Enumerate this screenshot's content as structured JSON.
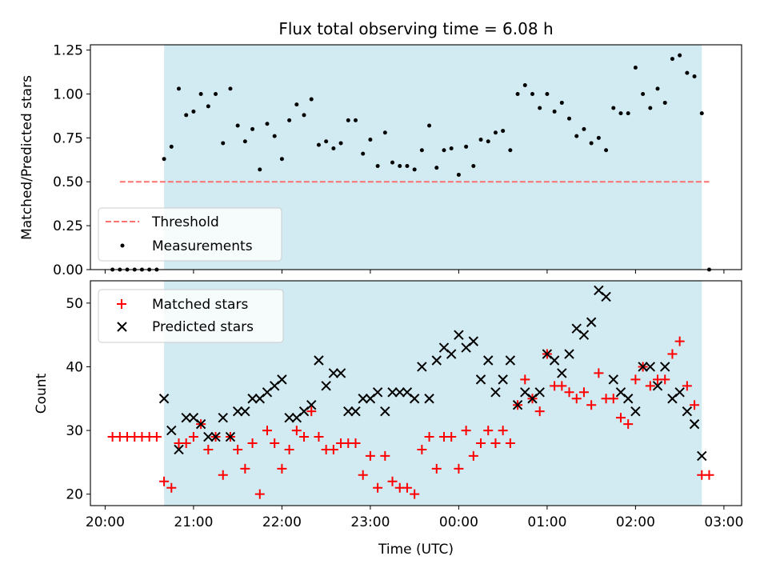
{
  "title": "Flux total observing time = 6.08 h",
  "colors": {
    "shade": "#add8e6",
    "threshold": "#ff7070",
    "matched": "#ff0000",
    "predicted": "#000000",
    "measurement": "#000000"
  },
  "x_ticks": [
    {
      "t": 20.0,
      "label": "20:00"
    },
    {
      "t": 21.0,
      "label": "21:00"
    },
    {
      "t": 22.0,
      "label": "22:00"
    },
    {
      "t": 23.0,
      "label": "23:00"
    },
    {
      "t": 24.0,
      "label": "00:00"
    },
    {
      "t": 25.0,
      "label": "01:00"
    },
    {
      "t": 26.0,
      "label": "02:00"
    },
    {
      "t": 27.0,
      "label": "03:00"
    }
  ],
  "chart_data": [
    {
      "type": "scatter",
      "title": "Flux total observing time = 6.08 h",
      "ylabel": "Matched/Predicted stars",
      "xlim": [
        "19:50",
        "03:12"
      ],
      "ylim": [
        0,
        1.28
      ],
      "y_ticks": [
        "0.00",
        "0.25",
        "0.50",
        "0.75",
        "1.00",
        "1.25"
      ],
      "shaded_range": [
        "20:40",
        "02:45"
      ],
      "legend": {
        "position": "lower-left",
        "threshold_label": "Threshold",
        "measurements_label": "Measurements"
      },
      "threshold": 0.5,
      "threshold_span": [
        "20:10",
        "02:50"
      ],
      "measurements": {
        "x": [
          "20:05",
          "20:10",
          "20:15",
          "20:20",
          "20:25",
          "20:30",
          "20:35",
          "20:40",
          "20:45",
          "20:50",
          "20:55",
          "21:00",
          "21:05",
          "21:10",
          "21:15",
          "21:20",
          "21:25",
          "21:30",
          "21:35",
          "21:40",
          "21:45",
          "21:50",
          "21:55",
          "22:00",
          "22:05",
          "22:10",
          "22:15",
          "22:20",
          "22:25",
          "22:30",
          "22:35",
          "22:40",
          "22:45",
          "22:50",
          "22:55",
          "23:00",
          "23:05",
          "23:10",
          "23:15",
          "23:20",
          "23:25",
          "23:30",
          "23:35",
          "23:40",
          "23:45",
          "23:50",
          "23:55",
          "00:00",
          "00:05",
          "00:10",
          "00:15",
          "00:20",
          "00:25",
          "00:30",
          "00:35",
          "00:40",
          "00:45",
          "00:50",
          "00:55",
          "01:00",
          "01:05",
          "01:10",
          "01:15",
          "01:20",
          "01:25",
          "01:30",
          "01:35",
          "01:40",
          "01:45",
          "01:50",
          "01:55",
          "02:00",
          "02:05",
          "02:10",
          "02:15",
          "02:20",
          "02:25",
          "02:30",
          "02:35",
          "02:40",
          "02:45",
          "02:50"
        ],
        "y": [
          0,
          0,
          0,
          0,
          0,
          0,
          0,
          0.63,
          0.7,
          1.03,
          0.88,
          0.9,
          1.0,
          0.93,
          1.0,
          0.72,
          1.03,
          0.82,
          0.73,
          0.8,
          0.57,
          0.83,
          0.76,
          0.63,
          0.85,
          0.94,
          0.88,
          0.97,
          0.71,
          0.73,
          0.69,
          0.72,
          0.85,
          0.85,
          0.66,
          0.74,
          0.59,
          0.78,
          0.61,
          0.59,
          0.59,
          0.57,
          0.68,
          0.82,
          0.58,
          0.68,
          0.69,
          0.54,
          0.7,
          0.59,
          0.74,
          0.73,
          0.78,
          0.79,
          0.68,
          1.0,
          1.05,
          1.0,
          0.92,
          1.0,
          0.9,
          0.95,
          0.86,
          0.76,
          0.8,
          0.72,
          0.75,
          0.68,
          0.92,
          0.89,
          0.89,
          1.15,
          1.0,
          0.92,
          1.03,
          0.95,
          1.2,
          1.22,
          1.12,
          1.1,
          0.89,
          0
        ]
      }
    },
    {
      "type": "scatter",
      "xlabel": "Time (UTC)",
      "ylabel": "Count",
      "xlim": [
        "19:50",
        "03:12"
      ],
      "ylim": [
        18.2,
        53.5
      ],
      "y_ticks": [
        "20",
        "30",
        "40",
        "50"
      ],
      "shaded_range": [
        "20:40",
        "02:45"
      ],
      "legend": {
        "position": "upper-left",
        "matched_label": "Matched stars",
        "predicted_label": "Predicted stars"
      },
      "matched": {
        "x": [
          "20:05",
          "20:10",
          "20:15",
          "20:20",
          "20:25",
          "20:30",
          "20:35",
          "20:40",
          "20:45",
          "20:50",
          "20:55",
          "21:00",
          "21:05",
          "21:10",
          "21:15",
          "21:20",
          "21:25",
          "21:30",
          "21:35",
          "21:40",
          "21:45",
          "21:50",
          "21:55",
          "22:00",
          "22:05",
          "22:10",
          "22:15",
          "22:20",
          "22:25",
          "22:30",
          "22:35",
          "22:40",
          "22:45",
          "22:50",
          "22:55",
          "23:00",
          "23:05",
          "23:10",
          "23:15",
          "23:20",
          "23:25",
          "23:30",
          "23:35",
          "23:40",
          "23:45",
          "23:50",
          "23:55",
          "00:00",
          "00:05",
          "00:10",
          "00:15",
          "00:20",
          "00:25",
          "00:30",
          "00:35",
          "00:40",
          "00:45",
          "00:50",
          "00:55",
          "01:00",
          "01:05",
          "01:10",
          "01:15",
          "01:20",
          "01:25",
          "01:30",
          "01:35",
          "01:40",
          "01:45",
          "01:50",
          "01:55",
          "02:00",
          "02:05",
          "02:10",
          "02:15",
          "02:20",
          "02:25",
          "02:30",
          "02:35",
          "02:40",
          "02:45",
          "02:50"
        ],
        "y": [
          29,
          29,
          29,
          29,
          29,
          29,
          29,
          22,
          21,
          28,
          28,
          29,
          31,
          27,
          29,
          23,
          29,
          27,
          24,
          28,
          20,
          30,
          28,
          24,
          27,
          30,
          29,
          33,
          29,
          27,
          27,
          28,
          28,
          28,
          23,
          26,
          21,
          26,
          22,
          21,
          21,
          20,
          27,
          29,
          24,
          29,
          29,
          24,
          30,
          26,
          28,
          30,
          28,
          30,
          28,
          34,
          38,
          35,
          33,
          42,
          37,
          37,
          36,
          35,
          36,
          34,
          39,
          35,
          35,
          32,
          31,
          38,
          40,
          37,
          38,
          38,
          42,
          44,
          37,
          34,
          23,
          23
        ]
      },
      "predicted": {
        "x": [
          "20:40",
          "20:45",
          "20:50",
          "20:55",
          "21:00",
          "21:05",
          "21:10",
          "21:15",
          "21:20",
          "21:25",
          "21:30",
          "21:35",
          "21:40",
          "21:45",
          "21:50",
          "21:55",
          "22:00",
          "22:05",
          "22:10",
          "22:15",
          "22:20",
          "22:25",
          "22:30",
          "22:35",
          "22:40",
          "22:45",
          "22:50",
          "22:55",
          "23:00",
          "23:05",
          "23:10",
          "23:15",
          "23:20",
          "23:25",
          "23:30",
          "23:35",
          "23:40",
          "23:45",
          "23:50",
          "23:55",
          "00:00",
          "00:05",
          "00:10",
          "00:15",
          "00:20",
          "00:25",
          "00:30",
          "00:35",
          "00:40",
          "00:45",
          "00:50",
          "00:55",
          "01:00",
          "01:05",
          "01:10",
          "01:15",
          "01:20",
          "01:25",
          "01:30",
          "01:35",
          "01:40",
          "01:45",
          "01:50",
          "01:55",
          "02:00",
          "02:05",
          "02:10",
          "02:15",
          "02:20",
          "02:25",
          "02:30",
          "02:35",
          "02:40",
          "02:45"
        ],
        "y": [
          35,
          30,
          27,
          32,
          32,
          31,
          29,
          29,
          32,
          29,
          33,
          33,
          35,
          35,
          36,
          37,
          38,
          32,
          32,
          33,
          34,
          41,
          37,
          39,
          39,
          33,
          33,
          35,
          35,
          36,
          33,
          36,
          36,
          36,
          35,
          40,
          35,
          41,
          43,
          42,
          45,
          43,
          44,
          38,
          41,
          36,
          38,
          41,
          34,
          36,
          35,
          36,
          42,
          41,
          39,
          42,
          46,
          45,
          47,
          52,
          51,
          38,
          36,
          35,
          33,
          40,
          40,
          37,
          40,
          35,
          36,
          33,
          31,
          26
        ]
      }
    }
  ]
}
